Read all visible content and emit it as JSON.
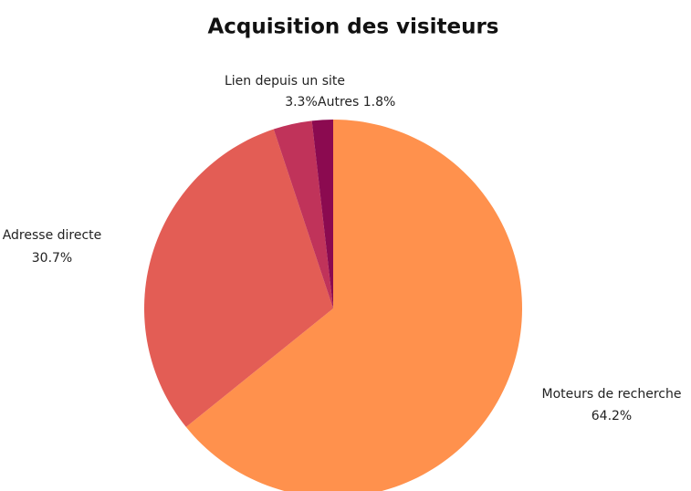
{
  "chart_data": {
    "type": "pie",
    "title": "Acquisition des visiteurs",
    "categories": [
      "Moteurs de recherche",
      "Adresse directe",
      "Lien depuis un site",
      "Autres"
    ],
    "values": [
      64.2,
      30.7,
      3.3,
      1.8
    ],
    "value_labels": [
      "64.2%",
      "30.7%",
      "3.3%",
      "1.8%"
    ],
    "colors": [
      "#ff914d",
      "#e35d55",
      "#c0335a",
      "#8b0a50"
    ]
  }
}
